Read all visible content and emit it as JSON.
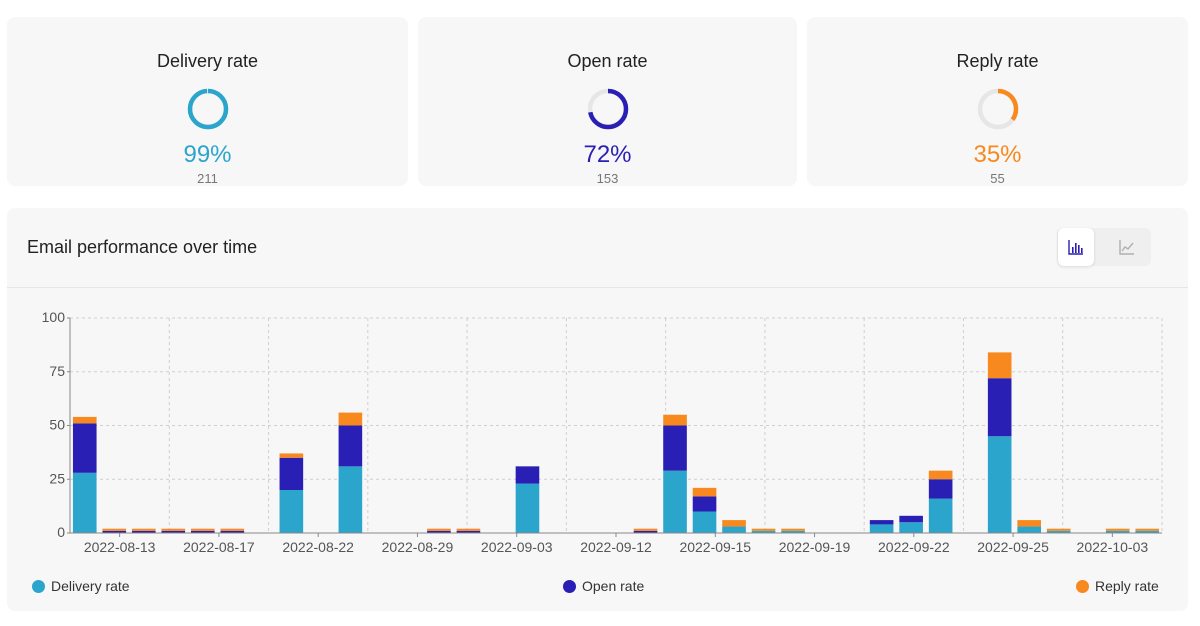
{
  "colors": {
    "delivery": "#2ba5cb",
    "open": "#2a1fb5",
    "reply": "#f7891f",
    "ring_track": "#e6e6e6"
  },
  "stats": [
    {
      "title": "Delivery rate",
      "percent_label": "99%",
      "percent": 99,
      "count": "211",
      "color": "#2ba5cb"
    },
    {
      "title": "Open rate",
      "percent_label": "72%",
      "percent": 72,
      "count": "153",
      "color": "#2a1fb5"
    },
    {
      "title": "Reply rate",
      "percent_label": "35%",
      "percent": 35,
      "count": "55",
      "color": "#f7891f"
    }
  ],
  "panel": {
    "title": "Email performance over time",
    "view_buttons": [
      {
        "icon": "bar-chart-icon",
        "active": true
      },
      {
        "icon": "line-chart-icon",
        "active": false
      }
    ]
  },
  "chart_data": {
    "type": "bar",
    "stacked": true,
    "title": "Email performance over time",
    "ylim": [
      0,
      100
    ],
    "yticks": [
      0,
      25,
      50,
      75,
      100
    ],
    "grid": true,
    "legend_position": "bottom",
    "x_tick_labels": [
      "2022-08-13",
      "2022-08-17",
      "2022-08-22",
      "2022-08-29",
      "2022-09-03",
      "2022-09-12",
      "2022-09-15",
      "2022-09-19",
      "2022-09-22",
      "2022-09-25",
      "2022-10-03"
    ],
    "series": [
      {
        "name": "Delivery rate",
        "color": "#2ba5cb",
        "values": [
          28,
          0,
          0,
          0,
          0,
          0,
          0,
          20,
          0,
          31,
          0,
          0,
          0,
          0,
          0,
          23,
          0,
          0,
          0,
          0,
          29,
          10,
          3,
          1,
          1,
          0,
          0,
          4,
          5,
          16,
          0,
          45,
          3,
          1,
          0,
          1,
          1
        ]
      },
      {
        "name": "Open rate",
        "color": "#2a1fb5",
        "values": [
          23,
          1,
          1,
          1,
          1,
          1,
          0,
          15,
          0,
          19,
          0,
          0,
          1,
          1,
          0,
          8,
          0,
          0,
          0,
          1,
          21,
          7,
          0,
          0,
          0,
          0,
          0,
          2,
          3,
          9,
          0,
          27,
          0,
          0,
          0,
          0,
          0
        ]
      },
      {
        "name": "Reply rate",
        "color": "#f7891f",
        "values": [
          3,
          1,
          1,
          1,
          1,
          1,
          0,
          2,
          0,
          6,
          0,
          0,
          1,
          1,
          0,
          0,
          0,
          0,
          0,
          1,
          5,
          4,
          3,
          1,
          1,
          0,
          0,
          0,
          0,
          4,
          0,
          12,
          3,
          1,
          0,
          1,
          1
        ]
      }
    ]
  }
}
